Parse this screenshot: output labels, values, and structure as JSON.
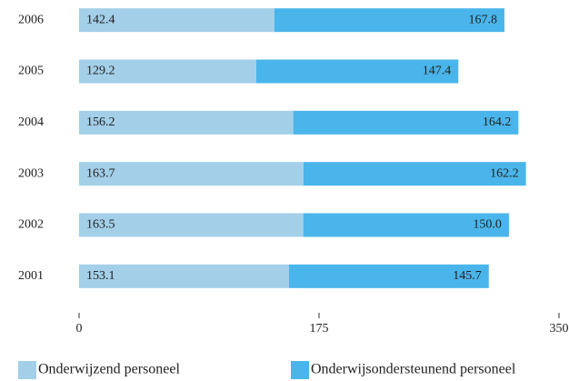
{
  "chart_data": {
    "type": "stacked-bar-horizontal",
    "categories": [
      "2006",
      "2005",
      "2004",
      "2003",
      "2002",
      "2001"
    ],
    "series": [
      {
        "name": "Onderwijzend personeel",
        "color": "#a3cfe9",
        "values": [
          142.4,
          129.2,
          156.2,
          163.7,
          163.5,
          153.1
        ],
        "value_labels": [
          "142.4",
          "129.2",
          "156.2",
          "163.7",
          "163.5",
          "153.1"
        ]
      },
      {
        "name": "Onderwijsondersteunend personeel",
        "color": "#4ab5ea",
        "values": [
          167.8,
          147.4,
          164.2,
          162.2,
          150.0,
          145.7
        ],
        "value_labels": [
          "167.8",
          "147.4",
          "164.2",
          "162.2",
          "150.0",
          "145.7"
        ]
      }
    ],
    "xlim": [
      0,
      350
    ],
    "xticks": [
      0,
      175,
      350
    ]
  }
}
